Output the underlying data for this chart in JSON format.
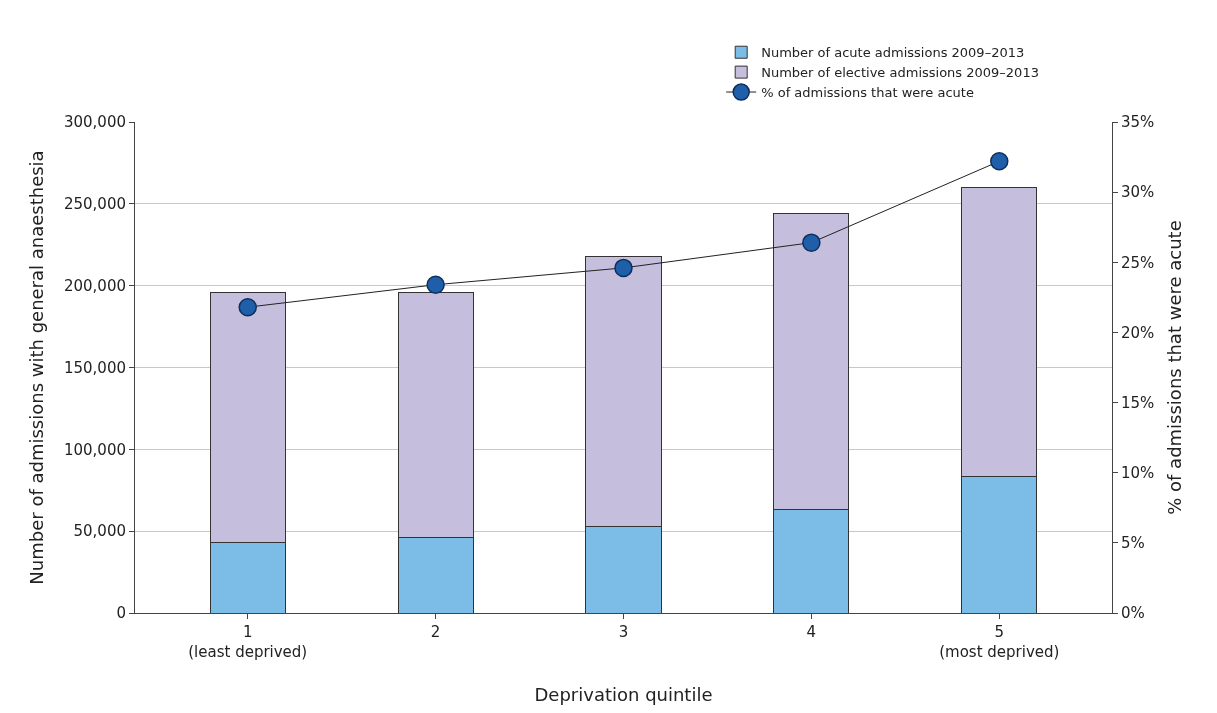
{
  "chart_data": {
    "type": "bar",
    "stacked": true,
    "xlabel": "Deprivation quintile",
    "ylabel": "Number of admissions with general anaesthesia",
    "y2label": "% of admissions that were acute",
    "categories": [
      "1\n(least deprived)",
      "2",
      "3",
      "4",
      "5\n(most deprived)"
    ],
    "series": [
      {
        "name": "Number of acute admissions 2009–2013",
        "color": "#7bbde6",
        "values": [
          43000,
          46000,
          53000,
          63500,
          83700
        ]
      },
      {
        "name": "Number of elective admissions 2009–2013",
        "color": "#c5bfdd",
        "values": [
          153000,
          150000,
          165000,
          180500,
          176000
        ]
      },
      {
        "name": "% of admissions that were acute",
        "type": "line",
        "axis": "y2",
        "color": "#1f5ea8",
        "marker": "circle",
        "values": [
          21.8,
          23.4,
          24.6,
          26.4,
          32.2
        ]
      }
    ],
    "ylim": [
      0,
      300000
    ],
    "yticks": [
      {
        "value": 0,
        "label": "0"
      },
      {
        "value": 50000,
        "label": "50,000"
      },
      {
        "value": 100000,
        "label": "100,000"
      },
      {
        "value": 150000,
        "label": "150,000"
      },
      {
        "value": 200000,
        "label": "200,000"
      },
      {
        "value": 250000,
        "label": "250,000"
      },
      {
        "value": 300000,
        "label": "300,000"
      }
    ],
    "y2lim": [
      0,
      35
    ],
    "y2ticks": [
      {
        "value": 0,
        "label": "0%"
      },
      {
        "value": 5,
        "label": "5%"
      },
      {
        "value": 10,
        "label": "10%"
      },
      {
        "value": 15,
        "label": "15%"
      },
      {
        "value": 20,
        "label": "20%"
      },
      {
        "value": 25,
        "label": "25%"
      },
      {
        "value": 30,
        "label": "30%"
      },
      {
        "value": 35,
        "label": "35%"
      }
    ],
    "grid": "y",
    "legend": "top right"
  }
}
